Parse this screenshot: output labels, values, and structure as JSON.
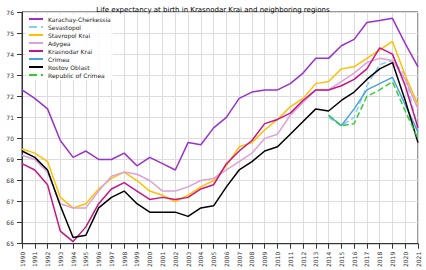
{
  "chart_data": {
    "type": "line",
    "title": "Life expectancy at birth in Krasnodar Krai and neighboring regions",
    "categories": [
      "1990",
      "1991",
      "1992",
      "1993",
      "1994",
      "1995",
      "1996",
      "1997",
      "1998",
      "1999",
      "2000",
      "2001",
      "2002",
      "2003",
      "2004",
      "2005",
      "2006",
      "2007",
      "2008",
      "2009",
      "2010",
      "2011",
      "2012",
      "2013",
      "2014",
      "2015",
      "2016",
      "2017",
      "2018",
      "2019",
      "2020",
      "2021"
    ],
    "series": [
      {
        "name": "Karachay-Cherkessia",
        "color": "#9932cc",
        "line_style": "solid",
        "values": [
          72.3,
          71.9,
          71.4,
          69.9,
          69.1,
          69.4,
          69.0,
          69.0,
          69.3,
          68.7,
          69.1,
          68.8,
          68.5,
          69.8,
          69.7,
          70.5,
          71.0,
          71.9,
          72.2,
          72.3,
          72.3,
          72.6,
          73.1,
          73.8,
          73.8,
          74.4,
          74.7,
          75.5,
          75.6,
          75.7,
          74.5,
          73.4
        ]
      },
      {
        "name": "Sevastopol",
        "color": "#87cefa",
        "line_style": "dashed",
        "values": [
          null,
          null,
          null,
          null,
          null,
          null,
          null,
          null,
          null,
          null,
          null,
          null,
          null,
          null,
          null,
          null,
          null,
          null,
          null,
          null,
          null,
          null,
          null,
          null,
          71.0,
          70.6,
          71.0,
          72.5,
          73.5,
          73.7,
          73.0,
          70.4
        ]
      },
      {
        "name": "Stavropol Krai",
        "color": "#ffc000",
        "line_style": "solid",
        "values": [
          69.5,
          69.3,
          68.9,
          67.2,
          66.7,
          66.9,
          67.6,
          68.1,
          68.4,
          68.0,
          67.5,
          67.3,
          67.0,
          67.3,
          67.7,
          68.0,
          68.7,
          69.6,
          69.8,
          70.4,
          70.9,
          71.5,
          71.9,
          72.6,
          72.7,
          73.3,
          73.4,
          73.8,
          74.2,
          74.6,
          73.0,
          71.6
        ]
      },
      {
        "name": "Adygea",
        "color": "#dda0dd",
        "line_style": "solid",
        "values": [
          69.2,
          69.0,
          68.4,
          66.9,
          66.7,
          66.7,
          67.5,
          68.2,
          68.4,
          68.3,
          68.0,
          67.5,
          67.5,
          67.7,
          68.0,
          68.1,
          68.5,
          68.9,
          69.3,
          70.0,
          70.2,
          71.1,
          71.7,
          72.3,
          72.3,
          72.7,
          73.1,
          73.6,
          73.8,
          73.7,
          72.8,
          71.4
        ]
      },
      {
        "name": "Krasnodar Krai",
        "color": "#c71585",
        "line_style": "solid",
        "values": [
          68.8,
          68.5,
          67.8,
          65.6,
          65.1,
          65.8,
          66.9,
          67.6,
          67.9,
          67.5,
          67.1,
          67.2,
          67.1,
          67.2,
          67.6,
          67.8,
          68.8,
          69.4,
          69.9,
          70.7,
          70.9,
          71.2,
          71.8,
          72.3,
          72.3,
          72.5,
          72.8,
          73.3,
          74.3,
          74.0,
          72.5,
          70.5
        ]
      },
      {
        "name": "Crimea",
        "color": "#4aa3df",
        "line_style": "solid",
        "values": [
          null,
          null,
          null,
          null,
          null,
          null,
          null,
          null,
          null,
          null,
          null,
          null,
          null,
          null,
          null,
          null,
          null,
          null,
          null,
          null,
          null,
          null,
          null,
          null,
          71.1,
          70.6,
          71.4,
          72.3,
          72.6,
          72.9,
          71.6,
          70.3
        ]
      },
      {
        "name": "Rostov Oblast",
        "color": "#000000",
        "line_style": "solid",
        "values": [
          69.4,
          69.1,
          68.5,
          66.8,
          65.3,
          65.4,
          66.7,
          67.2,
          67.5,
          66.9,
          66.5,
          66.5,
          66.5,
          66.3,
          66.7,
          66.8,
          67.7,
          68.5,
          68.9,
          69.4,
          69.6,
          70.2,
          70.8,
          71.4,
          71.3,
          71.8,
          72.2,
          72.8,
          73.3,
          73.6,
          71.8,
          69.8
        ]
      },
      {
        "name": "Republic of Crimea",
        "color": "#32cd32",
        "line_style": "dashed",
        "values": [
          null,
          null,
          null,
          null,
          null,
          null,
          null,
          null,
          null,
          null,
          null,
          null,
          null,
          null,
          null,
          null,
          null,
          null,
          null,
          null,
          null,
          null,
          null,
          null,
          71.1,
          70.6,
          70.7,
          72.0,
          72.3,
          72.7,
          71.3,
          70.0
        ]
      }
    ],
    "ylim": [
      65,
      76
    ],
    "yticks": [
      65,
      66,
      67,
      68,
      69,
      70,
      71,
      72,
      73,
      74,
      75
    ],
    "grid": true,
    "legend": "upper left"
  }
}
